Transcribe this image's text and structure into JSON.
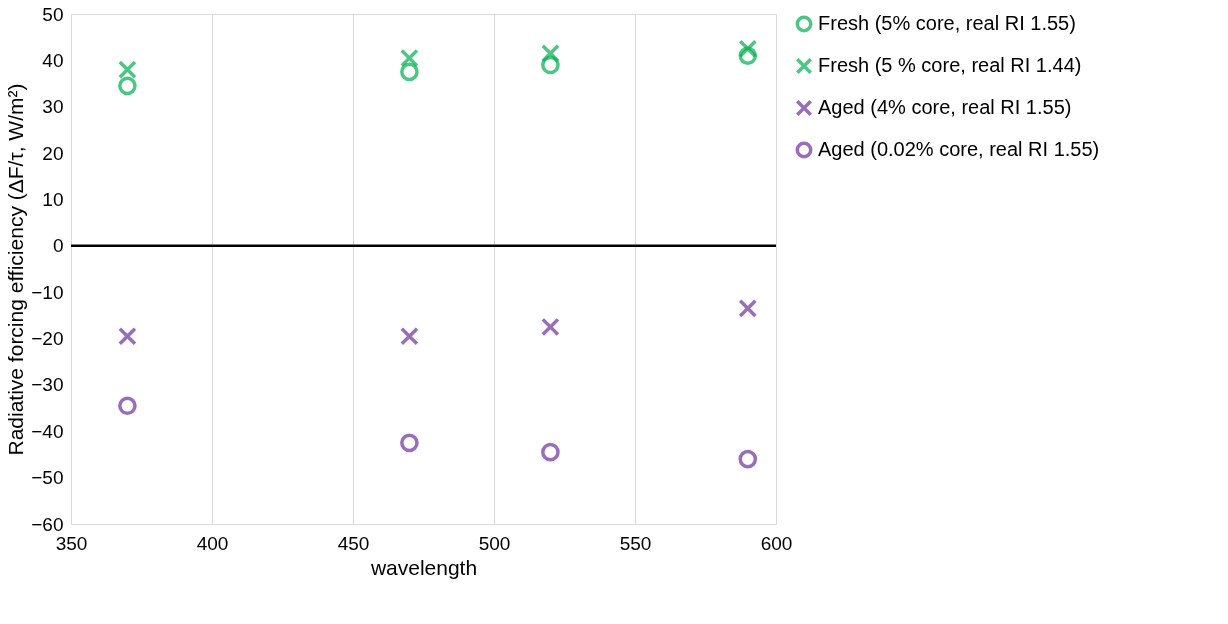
{
  "chart_data": {
    "type": "scatter",
    "xlabel": "wavelength",
    "ylabel": "Radiative forcing efficiency (ΔF/τ, W/m²)",
    "x": [
      370,
      470,
      520,
      590
    ],
    "series": [
      {
        "name": "Fresh (5% core, real RI 1.55)",
        "color": "#00b050",
        "marker": "circle",
        "values": [
          34.5,
          37.5,
          39,
          41
        ]
      },
      {
        "name": "Fresh (5 % core, real RI 1.44)",
        "color": "#00b050",
        "marker": "cross",
        "values": [
          38,
          40.5,
          41.5,
          42.5
        ]
      },
      {
        "name": "Aged (4% core, real RI 1.55)",
        "color": "#7030a0",
        "marker": "cross",
        "values": [
          -19.5,
          -19.5,
          -17.5,
          -13.5
        ]
      },
      {
        "name": "Aged (0.02% core, real RI 1.55)",
        "color": "#7030a0",
        "marker": "circle",
        "values": [
          -34.5,
          -42.5,
          -44.5,
          -46
        ]
      }
    ],
    "xlim": [
      350,
      600
    ],
    "xticks": [
      350,
      400,
      450,
      500,
      550,
      600
    ],
    "ylim": [
      -60,
      50
    ],
    "yticks": [
      -60,
      -50,
      -40,
      -30,
      -20,
      -10,
      0,
      10,
      20,
      30,
      40,
      50
    ],
    "ref_lines": [
      {
        "axis": "y",
        "value": 0,
        "color": "#000000"
      }
    ],
    "grid": "x",
    "legend": "right"
  }
}
